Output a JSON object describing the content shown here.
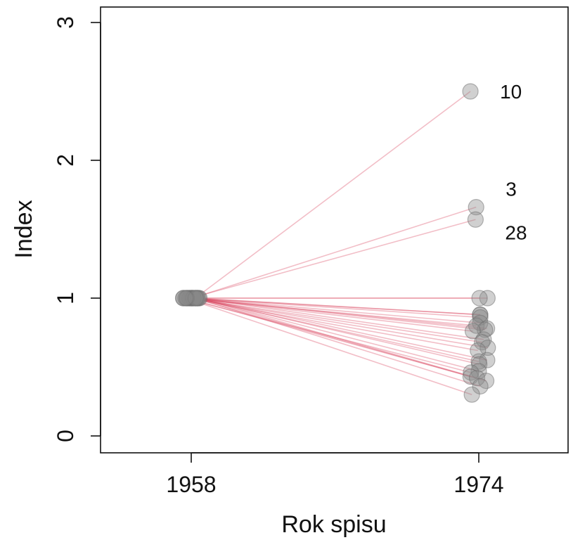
{
  "chart_data": {
    "type": "scatter",
    "title": "",
    "xlabel": "Rok spisu",
    "ylabel": "Index",
    "x_categories": [
      "1958",
      "1974"
    ],
    "yticks": [
      "0",
      "1",
      "2",
      "3"
    ],
    "ylim": [
      -0.1,
      3.1
    ],
    "grid": false,
    "colors": {
      "point_fill": "#8a8a8a",
      "point_stroke": "#6e6e6e",
      "line": "#d9455f",
      "axis": "#111111"
    },
    "series": [
      {
        "label": "10",
        "start": 1,
        "end": 2.5
      },
      {
        "label": "3",
        "start": 1,
        "end": 1.66
      },
      {
        "label": "28",
        "start": 1,
        "end": 1.57
      },
      {
        "label": "",
        "start": 1,
        "end": 1.0
      },
      {
        "label": "",
        "start": 1,
        "end": 1.0
      },
      {
        "label": "",
        "start": 1,
        "end": 0.88
      },
      {
        "label": "",
        "start": 1,
        "end": 0.88
      },
      {
        "label": "",
        "start": 1,
        "end": 0.86
      },
      {
        "label": "",
        "start": 1,
        "end": 0.82
      },
      {
        "label": "",
        "start": 1,
        "end": 0.8
      },
      {
        "label": "",
        "start": 1,
        "end": 0.78
      },
      {
        "label": "",
        "start": 1,
        "end": 0.77
      },
      {
        "label": "",
        "start": 1,
        "end": 0.76
      },
      {
        "label": "",
        "start": 1,
        "end": 0.7
      },
      {
        "label": "",
        "start": 1,
        "end": 0.68
      },
      {
        "label": "",
        "start": 1,
        "end": 0.64
      },
      {
        "label": "",
        "start": 1,
        "end": 0.62
      },
      {
        "label": "",
        "start": 1,
        "end": 0.55
      },
      {
        "label": "",
        "start": 1,
        "end": 0.54
      },
      {
        "label": "",
        "start": 1,
        "end": 0.52
      },
      {
        "label": "",
        "start": 1,
        "end": 0.47
      },
      {
        "label": "",
        "start": 1,
        "end": 0.46
      },
      {
        "label": "",
        "start": 1,
        "end": 0.43
      },
      {
        "label": "",
        "start": 1,
        "end": 0.42
      },
      {
        "label": "",
        "start": 1,
        "end": 0.4
      },
      {
        "label": "",
        "start": 1,
        "end": 0.36
      },
      {
        "label": "",
        "start": 1,
        "end": 0.3
      }
    ]
  }
}
